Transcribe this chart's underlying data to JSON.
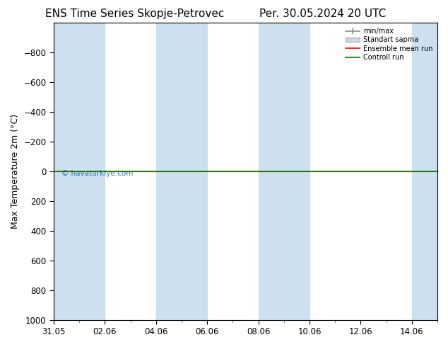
{
  "title": "ENS Time Series Skopje-Petrovec",
  "title2": "Per. 30.05.2024 20 UTC",
  "ylabel": "Max Temperature 2m (°C)",
  "watermark": "© havaturkiye.com",
  "x_labels": [
    "31.05",
    "02.06",
    "04.06",
    "06.06",
    "08.06",
    "10.06",
    "12.06",
    "14.06"
  ],
  "x_ticks": [
    0,
    2,
    4,
    6,
    8,
    10,
    12,
    14
  ],
  "ylim": [
    -1000,
    1000
  ],
  "yticks": [
    -800,
    -600,
    -400,
    -200,
    0,
    200,
    400,
    600,
    800,
    1000
  ],
  "xlim": [
    0,
    15
  ],
  "shaded_regions": [
    [
      0,
      2
    ],
    [
      4,
      6
    ],
    [
      8,
      10
    ],
    [
      14,
      15
    ]
  ],
  "shaded_color": "#cde0f0",
  "line_y": 0,
  "ensemble_mean_color": "#ff0000",
  "control_run_color": "#008000",
  "minmax_color": "#909090",
  "stddev_color": "#c8d8e8",
  "bg_color": "#ffffff",
  "plot_bg_color": "#ffffff",
  "legend_labels": [
    "min/max",
    "Standart sapma",
    "Ensemble mean run",
    "Controll run"
  ],
  "title_fontsize": 11,
  "tick_fontsize": 8.5,
  "ylabel_fontsize": 9
}
